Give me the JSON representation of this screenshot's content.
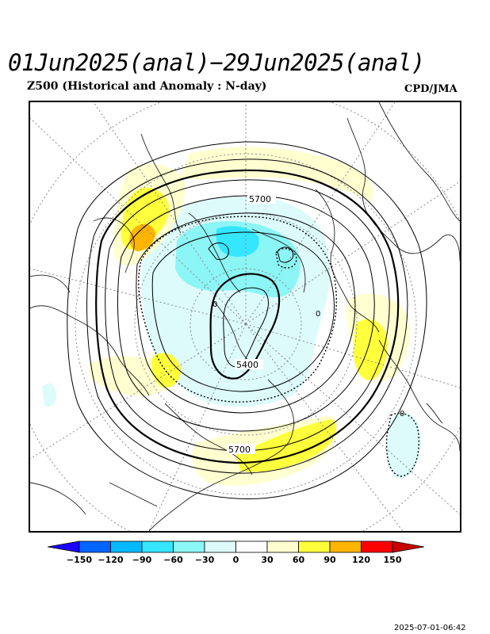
{
  "header": {
    "title": "01Jun2025(anal)−29Jun2025(anal)",
    "subtitle": "Z500 (Historical and Anomaly : N-day)",
    "credit": "CPD/JMA"
  },
  "map": {
    "projection": "north-polar-stereographic",
    "contour_labels": [
      "5700",
      "5400",
      "5700",
      "0",
      "0",
      "0"
    ]
  },
  "colorbar": {
    "ticks": [
      "−150",
      "−120",
      "−90",
      "−60",
      "−30",
      "0",
      "30",
      "60",
      "90",
      "120",
      "150"
    ],
    "colors": [
      "#1a00ff",
      "#0064ff",
      "#00b9ff",
      "#35e6ff",
      "#8cf5f5",
      "#ddfbfb",
      "#ffffff",
      "#ffffd0",
      "#ffff3c",
      "#ffb400",
      "#ff0000",
      "#c80000"
    ]
  },
  "footer": {
    "timestamp": "2025-07-01-06:42"
  }
}
